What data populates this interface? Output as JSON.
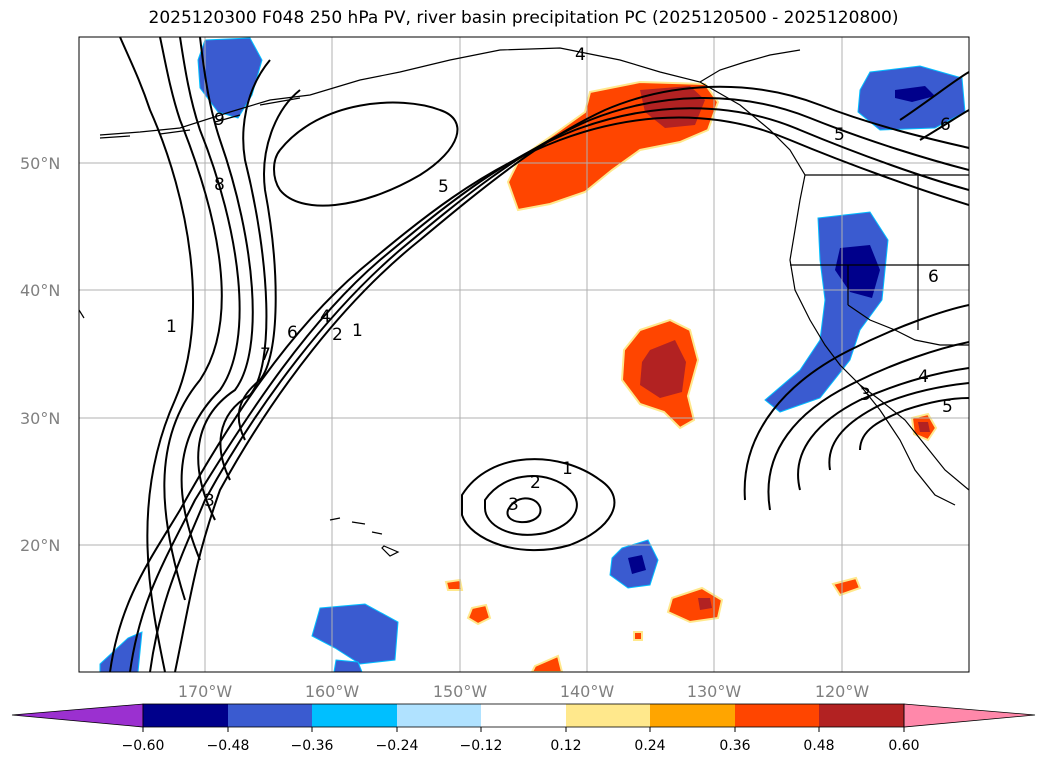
{
  "title": "2025120300 F048 250 hPa PV, river basin precipitation PC (2025120500 - 2025120800)",
  "lat_labels": [
    "50°N",
    "40°N",
    "30°N",
    "20°N"
  ],
  "lon_labels": [
    "170°W",
    "160°W",
    "150°W",
    "140°W",
    "130°W",
    "120°W"
  ],
  "colorbar": {
    "ticks": [
      "−0.60",
      "−0.48",
      "−0.36",
      "−0.24",
      "−0.12",
      "0.12",
      "0.24",
      "0.36",
      "0.48",
      "0.60"
    ],
    "colors": [
      "#9b30d0",
      "#00008b",
      "#3a5bd0",
      "#00bfff",
      "#b0e2ff",
      "#ffffff",
      "#ffe88c",
      "#ffa500",
      "#ff4500",
      "#b22222",
      "#ff88aa"
    ]
  },
  "contour_labels": [
    "4",
    "5",
    "5",
    "6",
    "8",
    "9",
    "1",
    "7",
    "6",
    "4",
    "2",
    "1",
    "3",
    "1",
    "2",
    "3",
    "3",
    "4",
    "5",
    "6"
  ],
  "colors": {
    "neg_fill": "#3a5bd0",
    "neg_core": "#00008b",
    "pos_fill": "#ff4500",
    "pos_core": "#b22222",
    "pos_edge": "#ffe88c",
    "grid": "#b0b0b0"
  }
}
